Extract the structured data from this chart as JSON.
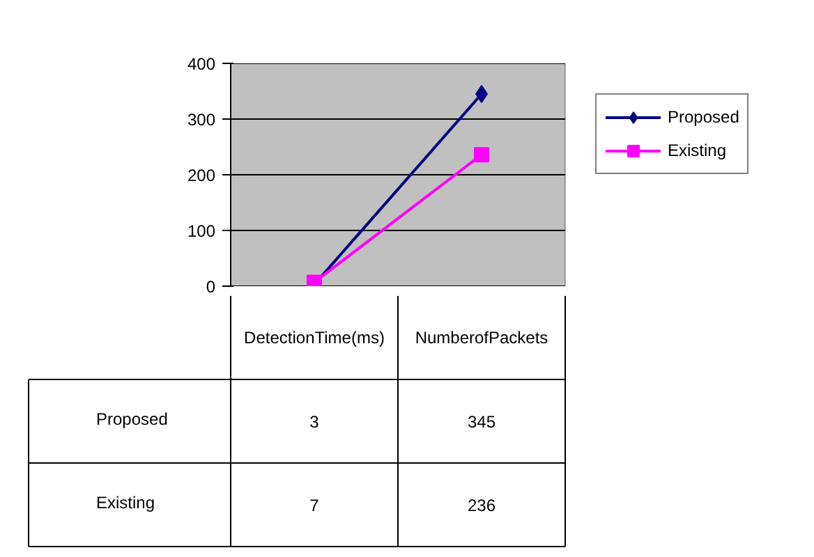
{
  "chart_data": {
    "type": "line",
    "categories": [
      "DetectionTime(ms)",
      "NumberofPackets"
    ],
    "series": [
      {
        "name": "Proposed",
        "color": "#000080",
        "marker": "diamond",
        "values": [
          3,
          345
        ]
      },
      {
        "name": "Existing",
        "color": "#ff00ff",
        "marker": "square",
        "values": [
          7,
          236
        ]
      }
    ],
    "ylim": [
      0,
      400
    ],
    "yticks": [
      0,
      100,
      200,
      300,
      400
    ],
    "grid": "y",
    "legend": "right",
    "data_labels": true
  }
}
